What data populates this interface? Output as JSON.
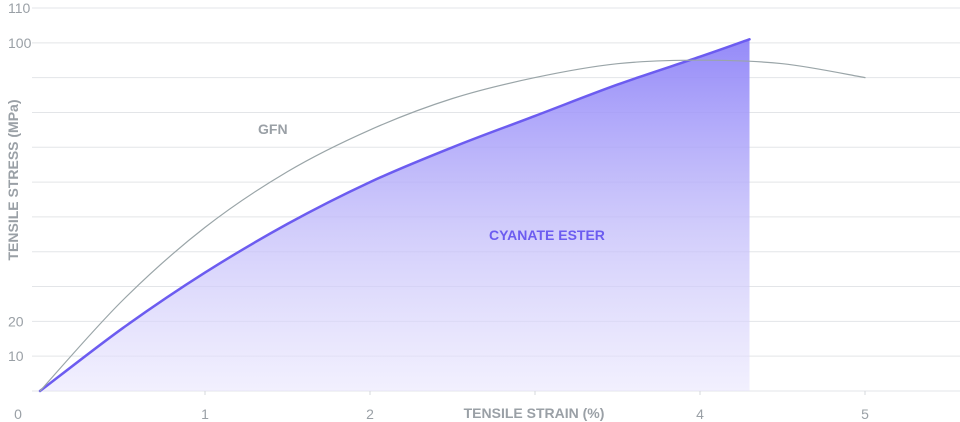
{
  "chart_data": {
    "type": "area",
    "xlabel": "TENSILE STRAIN (%)",
    "ylabel": "TENSILE STRESS (MPa)",
    "xlim": [
      0,
      5.7
    ],
    "ylim": [
      0,
      110
    ],
    "x_ticks": [
      0,
      1,
      2,
      3,
      4,
      5
    ],
    "x_tick_labels": [
      "0",
      "1",
      "2",
      "",
      "4",
      "5"
    ],
    "y_gridlines": [
      10,
      20,
      30,
      40,
      50,
      60,
      70,
      80,
      90,
      100,
      110
    ],
    "y_tick_labels": [
      {
        "value": 10,
        "label": "10"
      },
      {
        "value": 20,
        "label": "20"
      },
      {
        "value": 100,
        "label": "100"
      },
      {
        "value": 110,
        "label": "110"
      }
    ],
    "grid": true,
    "series": [
      {
        "name": "CYANATE ESTER",
        "color": "#6c5cf0",
        "filled": true,
        "points": [
          [
            0,
            0
          ],
          [
            0.5,
            18
          ],
          [
            1,
            34
          ],
          [
            1.5,
            48
          ],
          [
            2,
            60
          ],
          [
            2.5,
            70
          ],
          [
            3,
            79
          ],
          [
            3.5,
            88
          ],
          [
            4,
            96
          ],
          [
            4.3,
            101
          ]
        ]
      },
      {
        "name": "GFN",
        "color": "#9aa5a8",
        "filled": false,
        "points": [
          [
            0,
            0
          ],
          [
            0.5,
            26
          ],
          [
            1,
            47
          ],
          [
            1.5,
            63
          ],
          [
            2,
            75
          ],
          [
            2.5,
            84
          ],
          [
            3,
            90
          ],
          [
            3.5,
            94
          ],
          [
            4,
            95
          ],
          [
            4.5,
            94
          ],
          [
            5,
            90
          ]
        ]
      }
    ]
  }
}
